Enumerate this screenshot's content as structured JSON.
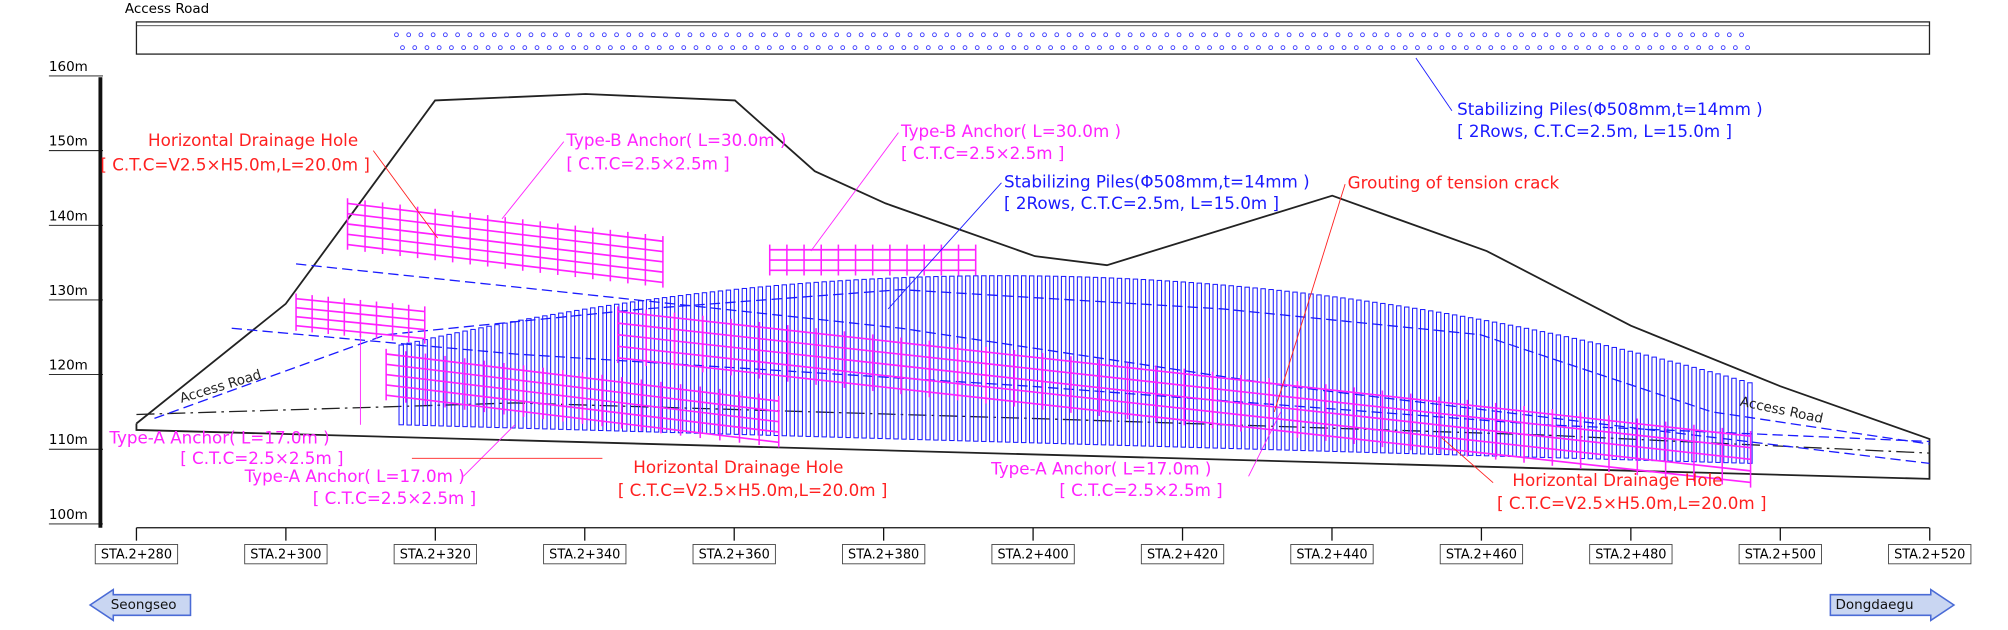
{
  "header": {
    "access_road": "Access Road"
  },
  "elevations": [
    "160m",
    "150m",
    "140m",
    "130m",
    "120m",
    "110m",
    "100m"
  ],
  "stations": [
    "STA.2+280",
    "STA.2+300",
    "STA.2+320",
    "STA.2+340",
    "STA.2+360",
    "STA.2+380",
    "STA.2+400",
    "STA.2+420",
    "STA.2+440",
    "STA.2+460",
    "STA.2+480",
    "STA.2+500",
    "STA.2+520"
  ],
  "profile_labels": [
    "Access Road",
    "Access Road"
  ],
  "annotations": [
    {
      "lines": [
        "Stabilizing Piles(Φ508mm,t=14mm )",
        "[ 2Rows, C.T.C=2.5m, L=15.0m ]"
      ]
    },
    {
      "lines": [
        "Horizontal Drainage Hole",
        "[ C.T.C=V2.5×H5.0m,L=20.0m ]"
      ]
    },
    {
      "lines": [
        "Type-B Anchor( L=30.0m )",
        "[ C.T.C=2.5×2.5m ]"
      ]
    },
    {
      "lines": [
        "Type-B Anchor( L=30.0m )",
        "[ C.T.C=2.5×2.5m ]"
      ]
    },
    {
      "lines": [
        "Stabilizing Piles(Φ508mm,t=14mm )",
        "[ 2Rows, C.T.C=2.5m, L=15.0m ]"
      ]
    },
    {
      "lines": [
        "Grouting of tension crack"
      ]
    },
    {
      "lines": [
        "Type-A Anchor( L=17.0m )",
        "[ C.T.C=2.5×2.5m ]"
      ]
    },
    {
      "lines": [
        "Type-A Anchor( L=17.0m )",
        "[ C.T.C=2.5×2.5m ]"
      ]
    },
    {
      "lines": [
        "Horizontal Drainage Hole",
        "[ C.T.C=V2.5×H5.0m,L=20.0m ]"
      ]
    },
    {
      "lines": [
        "Type-A Anchor( L=17.0m )",
        "[ C.T.C=2.5×2.5m ]"
      ]
    },
    {
      "lines": [
        "Horizontal Drainage Hole",
        "[ C.T.C=V2.5×H5.0m,L=20.0m ]"
      ]
    }
  ],
  "directions": {
    "left": "Seongseo",
    "right": "Dongdaegu"
  }
}
